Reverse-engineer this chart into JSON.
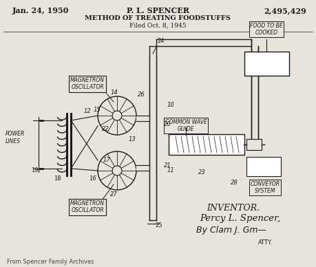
{
  "bg_color": "#e8e4dc",
  "header_left": "Jan. 24, 1950",
  "header_center": "P. L. SPENCER",
  "header_right": "2,495,429",
  "subtitle1": "METHOD OF TREATING FOODSTUFFS",
  "subtitle2": "Filed Oct. 8, 1945",
  "footer_text": "From Spencer Family Archives",
  "inventor_line1": "INVENTOR.",
  "inventor_line2": "Percy L. Spencer,",
  "inventor_line3": "By Clam J. Gm",
  "inventor_line4": "ATTY.",
  "label_magnetron_top": "MAGNETRON\nOSCILLATOR",
  "label_magnetron_bot": "MAGNETRON\nOSCILLATOR",
  "label_power": "POWER\nLINES",
  "label_food": "FOOD TO BE\nCOOKED",
  "label_waveguide": "COMMON WAVE\nGUIDE",
  "label_conveyor": "CONVEYOR\nSYSTEM",
  "text_color": "#1a1a1a"
}
